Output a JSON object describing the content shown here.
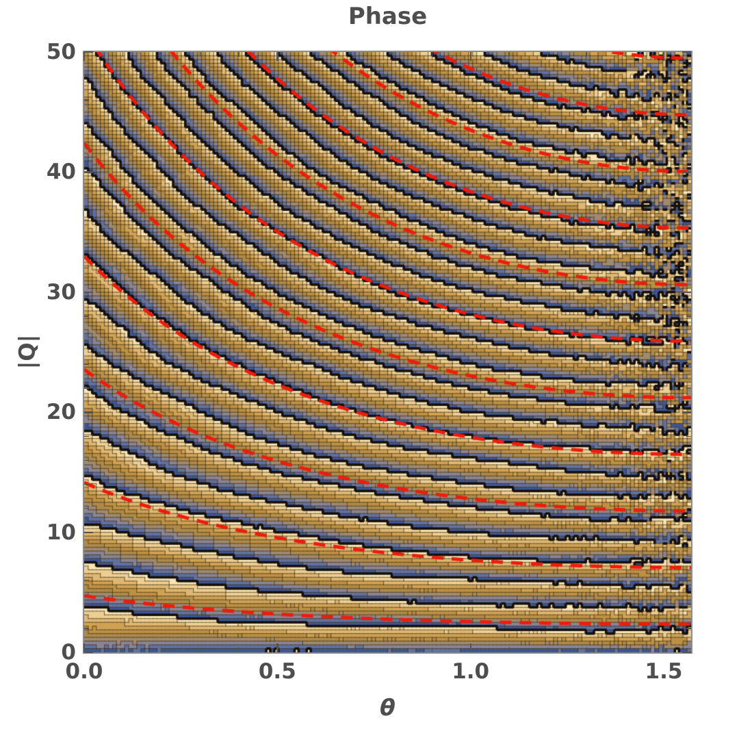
{
  "chart_data": {
    "type": "contour",
    "title": "Phase",
    "xlabel": "θ",
    "ylabel": "|Q|",
    "x_range": [
      0,
      1.5708
    ],
    "y_range": [
      0,
      50
    ],
    "x_ticks": [
      {
        "value": 0.0,
        "label": "0.0"
      },
      {
        "value": 0.5,
        "label": "0.5"
      },
      {
        "value": 1.0,
        "label": "1.0"
      },
      {
        "value": 1.5,
        "label": "1.5"
      }
    ],
    "y_ticks": [
      {
        "value": 0,
        "label": "0"
      },
      {
        "value": 10,
        "label": "10"
      },
      {
        "value": 20,
        "label": "20"
      },
      {
        "value": 30,
        "label": "30"
      },
      {
        "value": 40,
        "label": "40"
      },
      {
        "value": 50,
        "label": "50"
      }
    ],
    "x_minor_step": 0.1,
    "y_minor_step": 2,
    "description": "Filled contour plot of a wrapped oscillatory phase field over θ ∈ [0, π/2] and |Q| ∈ [0, 50]. Phase fringes follow curves of constant |Q|·(1+sin θ); about 13.5 fringe cycles cross the θ=0 edge (period ≈ 3.7 in |Q|). Fringes compress and become aliased/chaotic speckle toward θ → π/2 and large |Q| (upper-right). Thick dashed red hyperbola-like guide curves overlay the fringes.",
    "phase_model": {
      "coefficient": 1.7,
      "form": "φ(θ,|Q|) = 1.7·|Q|·(1+sin θ)  (mod 2π)"
    },
    "contour_bands": {
      "levels_per_cycle": 10,
      "palette": [
        "#3f5795",
        "#62719f",
        "#8a8494",
        "#9f8a70",
        "#ae8a4a",
        "#bd9145",
        "#cfa255",
        "#dfb773",
        "#edce93",
        "#f8e5b5"
      ],
      "line_color": "rgba(60,45,15,0.6)",
      "wrap_edge_color": "#17100a"
    },
    "overlay_curves": {
      "color": "#ee1c0c",
      "style": "dashed",
      "form": "|Q|·(1+sin θ) = 3π·(n − 1/2), n = 1…11",
      "constants": [
        4.712,
        14.137,
        23.562,
        32.987,
        42.412,
        51.836,
        61.261,
        70.686,
        80.111,
        89.535,
        98.96
      ]
    },
    "frame_color": "#8c8c8c",
    "tick_color": "#545454",
    "label_color": "#4e4e4e",
    "background": "#ffffff"
  }
}
